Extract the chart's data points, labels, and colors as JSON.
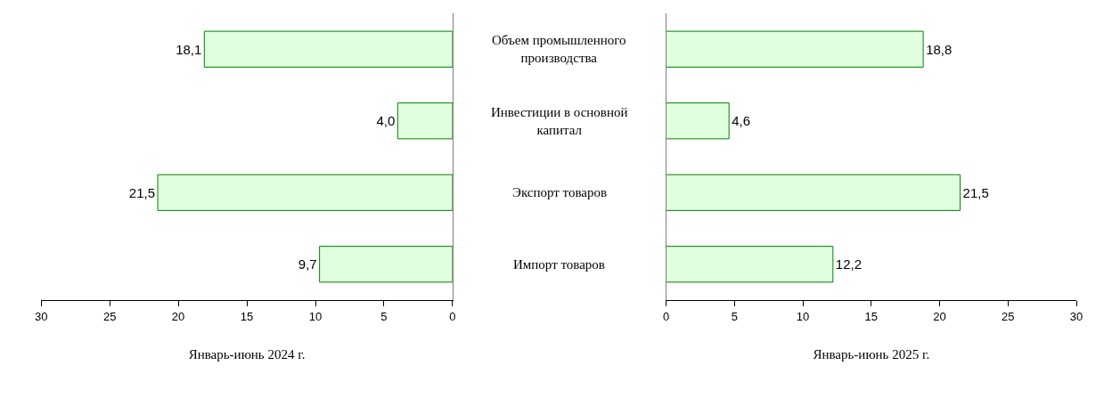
{
  "chart_data": [
    {
      "type": "bar",
      "orientation": "horizontal",
      "categories": [
        null,
        null,
        null,
        null
      ],
      "values": [
        18.1,
        4.0,
        21.5,
        9.7
      ],
      "value_labels": [
        "18,1",
        "4,0",
        "21,5",
        "9,7"
      ],
      "color": "#e0ffe0",
      "xlim": [
        30,
        0
      ],
      "xticks": [
        30,
        25,
        20,
        15,
        10,
        5,
        0
      ],
      "xlabel": "Январь-июнь 2024 г.",
      "tick_labels": "x"
    },
    {
      "type": "bar",
      "orientation": "horizontal",
      "categories": [
        "Объем промышленного производства",
        "Инвестиции в основной капитал",
        "Экспорт товаров",
        "Импорт товаров"
      ],
      "values": [
        18.8,
        4.6,
        21.5,
        12.2
      ],
      "value_labels": [
        "18,8",
        "4,6",
        "21,5",
        "12,2"
      ],
      "color": "#e0ffe0",
      "xlim": [
        0,
        30
      ],
      "xticks": [
        0,
        5,
        10,
        15,
        20,
        25,
        30
      ],
      "xlabel": "Январь-июнь 2025 г."
    }
  ]
}
